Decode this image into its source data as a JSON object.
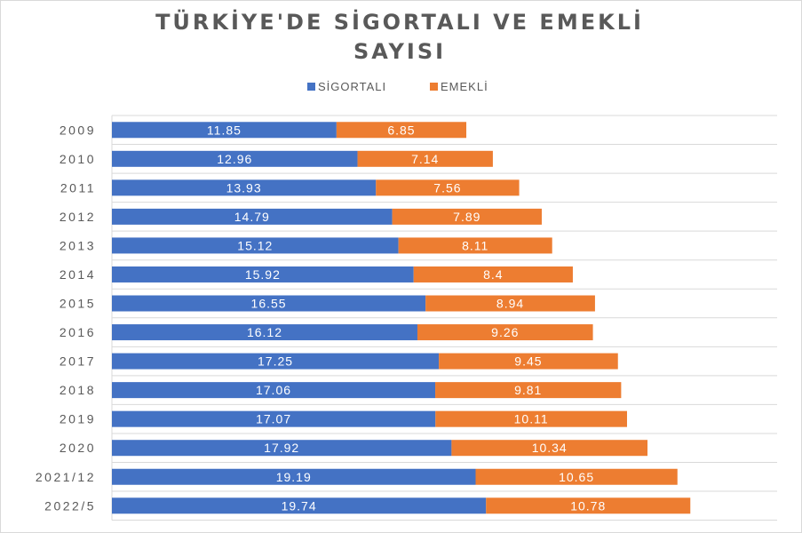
{
  "chart_data": {
    "type": "bar",
    "orientation": "horizontal",
    "stacked": true,
    "title": [
      "TÜRKİYE'DE SİGORTALI VE EMEKLİ",
      "SAYISI"
    ],
    "xlabel": "",
    "ylabel": "",
    "xlim": [
      0,
      35.1
    ],
    "grid": true,
    "legend_position": "top",
    "categories": [
      "2009",
      "2010",
      "2011",
      "2012",
      "2013",
      "2014",
      "2015",
      "2016",
      "2017",
      "2018",
      "2019",
      "2020",
      "2021/12",
      "2022/5"
    ],
    "series": [
      {
        "name": "SİGORTALI",
        "color": "#4472C4",
        "values": [
          11.85,
          12.96,
          13.93,
          14.79,
          15.12,
          15.92,
          16.55,
          16.12,
          17.25,
          17.06,
          17.07,
          17.92,
          19.19,
          19.74
        ]
      },
      {
        "name": "EMEKLİ",
        "color": "#ED7D31",
        "values": [
          6.85,
          7.14,
          7.56,
          7.89,
          8.11,
          8.4,
          8.94,
          9.26,
          9.45,
          9.81,
          10.11,
          10.34,
          10.65,
          10.78
        ]
      }
    ]
  }
}
